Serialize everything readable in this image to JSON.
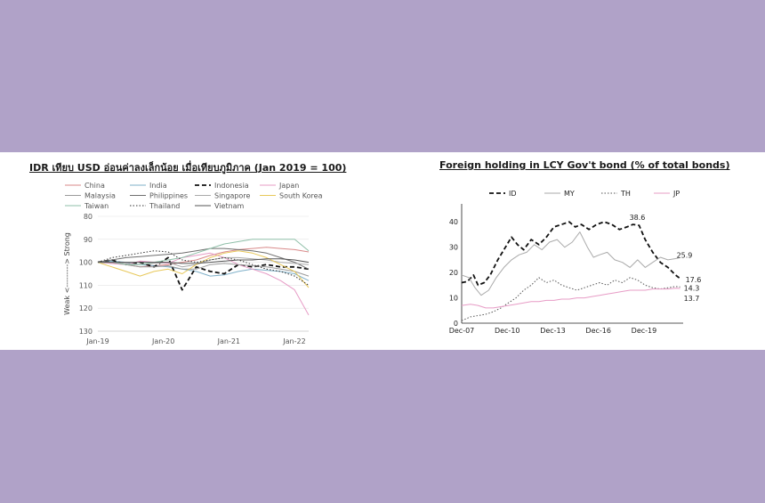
{
  "chart_data": [
    {
      "type": "line",
      "title": "IDR เทียบ USD อ่อนค่าลงเล็กน้อย เมื่อเทียบภูมิภาค (Jan 2019 = 100)",
      "ylabel": "Weak <---------> Strong",
      "xlabel": "",
      "y_inverted": true,
      "ylim": [
        80,
        130
      ],
      "yticks": [
        "80",
        "90",
        "100",
        "110",
        "120",
        "130"
      ],
      "xticks": [
        "Jan-19",
        "Jan-20",
        "Jan-21",
        "Jan-22"
      ],
      "legend_position": "top",
      "series": [
        {
          "name": "China",
          "color": "#d98a8a",
          "dash": "solid",
          "values": [
            100,
            100.5,
            101,
            102,
            101.5,
            101,
            100,
            99,
            97,
            95.5,
            94.5,
            94,
            93.5,
            94,
            94.5,
            95.5
          ]
        },
        {
          "name": "India",
          "color": "#7fb0c9",
          "dash": "solid",
          "values": [
            100,
            99.5,
            100,
            101,
            101.5,
            102,
            103,
            104,
            106,
            105.5,
            104,
            103,
            103.5,
            104,
            105,
            108
          ]
        },
        {
          "name": "Indonesia",
          "color": "#111111",
          "dash": "dash",
          "values": [
            100,
            99,
            101,
            100,
            102,
            98,
            112,
            102,
            104,
            105,
            101,
            102,
            101,
            102,
            102,
            103
          ]
        },
        {
          "name": "Japan",
          "color": "#e79cc6",
          "dash": "solid",
          "values": [
            100,
            100.5,
            101,
            99.5,
            100,
            100.5,
            98,
            97,
            96,
            98,
            101,
            103,
            105,
            108,
            112,
            123
          ]
        },
        {
          "name": "Malaysia",
          "color": "#9a9a9a",
          "dash": "solid",
          "values": [
            100,
            100,
            101,
            102,
            102,
            101.5,
            103,
            103,
            101,
            100.5,
            101,
            101.5,
            102,
            103,
            104,
            106
          ]
        },
        {
          "name": "Philippines",
          "color": "#6f6f6f",
          "dash": "solid",
          "values": [
            100,
            99,
            98,
            97.5,
            97,
            96.5,
            96,
            95,
            94,
            94,
            94.5,
            95,
            96,
            98,
            100,
            103
          ]
        },
        {
          "name": "Singapore",
          "color": "#aaaaaa",
          "dash": "solid",
          "values": [
            100,
            100,
            100.5,
            101,
            100.5,
            100,
            102,
            101,
            99,
            98,
            98,
            98.5,
            99,
            100,
            100.5,
            101
          ]
        },
        {
          "name": "South Korea",
          "color": "#e8c85a",
          "dash": "solid",
          "values": [
            100,
            102,
            104,
            106,
            104,
            103,
            105,
            101,
            98,
            96,
            95,
            96,
            98,
            101,
            104,
            111
          ]
        },
        {
          "name": "Taiwan",
          "color": "#8fbfa8",
          "dash": "solid",
          "values": [
            100,
            100,
            101,
            101,
            100,
            99,
            98,
            96,
            94,
            92,
            91,
            90,
            90,
            90,
            90,
            95
          ]
        },
        {
          "name": "Thailand",
          "color": "#333333",
          "dash": "dot",
          "values": [
            100,
            98,
            97,
            96,
            95,
            95.5,
            99,
            100,
            99,
            98,
            99,
            101,
            103,
            104,
            106,
            110
          ]
        },
        {
          "name": "Vietnam",
          "color": "#555555",
          "dash": "solid",
          "values": [
            100,
            100,
            100,
            100,
            100,
            100,
            100.5,
            100.5,
            100,
            99.5,
            99,
            99,
            98.5,
            98.5,
            99,
            100
          ]
        }
      ]
    },
    {
      "type": "line",
      "title": "Foreign holding in LCY Gov't bond (% of total bonds)",
      "ylim": [
        0,
        45
      ],
      "yticks": [
        "0",
        "10",
        "20",
        "30",
        "40"
      ],
      "xticks": [
        "Dec-07",
        "Dec-10",
        "Dec-13",
        "Dec-16",
        "Dec-19"
      ],
      "x_range": [
        2007.92,
        2022.5
      ],
      "legend_position": "top",
      "series": [
        {
          "name": "ID",
          "color": "#111111",
          "dash": "dash",
          "end_label": "17.6",
          "x": [
            2007.92,
            2008.3,
            2008.7,
            2009.0,
            2009.4,
            2009.8,
            2010.3,
            2010.8,
            2011.2,
            2011.6,
            2012.0,
            2012.5,
            2013.0,
            2013.5,
            2014.0,
            2014.5,
            2015.0,
            2015.4,
            2015.8,
            2016.3,
            2016.8,
            2017.3,
            2017.8,
            2018.3,
            2018.8,
            2019.2,
            2019.6,
            2020.0,
            2020.5,
            2021.0,
            2021.5,
            2022.0,
            2022.3
          ],
          "values": [
            16,
            16.5,
            19,
            15,
            16,
            19,
            25,
            30,
            34,
            31,
            29,
            33,
            31,
            34,
            38,
            39,
            40,
            38,
            39,
            37,
            39,
            40,
            39,
            37,
            38,
            39,
            38.6,
            33,
            28,
            24,
            22,
            19,
            17.6
          ]
        },
        {
          "name": "MY",
          "color": "#aaaaaa",
          "dash": "solid",
          "end_label": "25.9",
          "x": [
            2007.92,
            2008.4,
            2008.8,
            2009.2,
            2009.7,
            2010.2,
            2010.7,
            2011.2,
            2011.7,
            2012.2,
            2012.7,
            2013.2,
            2013.7,
            2014.2,
            2014.7,
            2015.2,
            2015.7,
            2016.2,
            2016.6,
            2017.0,
            2017.5,
            2018.0,
            2018.5,
            2019.0,
            2019.5,
            2020.0,
            2020.5,
            2021.0,
            2021.5,
            2022.0,
            2022.3
          ],
          "values": [
            19,
            18,
            14,
            11,
            13,
            18,
            22,
            25,
            27,
            28,
            31,
            29,
            32,
            33,
            30,
            32,
            36,
            30,
            26,
            27,
            28,
            25,
            24,
            22,
            25,
            22,
            24,
            26,
            25,
            25.5,
            25.9
          ]
        },
        {
          "name": "TH",
          "color": "#555555",
          "dash": "dot",
          "end_label": "14.3",
          "x": [
            2007.92,
            2008.5,
            2009.0,
            2009.5,
            2010.0,
            2010.5,
            2011.0,
            2011.5,
            2012.0,
            2012.5,
            2013.0,
            2013.5,
            2014.0,
            2014.5,
            2015.0,
            2015.5,
            2016.0,
            2016.5,
            2017.0,
            2017.5,
            2018.0,
            2018.5,
            2019.0,
            2019.5,
            2020.0,
            2020.5,
            2021.0,
            2021.5,
            2022.0,
            2022.3
          ],
          "values": [
            1,
            2.5,
            3,
            3.5,
            4.5,
            6,
            8,
            10,
            13,
            15,
            18,
            16,
            17,
            15,
            14,
            13,
            14,
            15,
            16,
            15,
            17,
            16,
            18,
            17,
            15,
            14,
            13.5,
            14,
            14.5,
            14.3
          ]
        },
        {
          "name": "JP",
          "color": "#e79cc6",
          "dash": "solid",
          "end_label": "13.7",
          "x": [
            2007.92,
            2008.5,
            2009.0,
            2009.5,
            2010.0,
            2010.5,
            2011.0,
            2011.5,
            2012.0,
            2012.5,
            2013.0,
            2013.5,
            2014.0,
            2014.5,
            2015.0,
            2015.5,
            2016.0,
            2016.5,
            2017.0,
            2017.5,
            2018.0,
            2018.5,
            2019.0,
            2019.5,
            2020.0,
            2020.5,
            2021.0,
            2021.5,
            2022.0,
            2022.3
          ],
          "values": [
            7,
            7.5,
            7,
            6,
            6,
            6.5,
            7,
            7.5,
            8,
            8.5,
            8.5,
            9,
            9,
            9.5,
            9.5,
            10,
            10,
            10.5,
            11,
            11.5,
            12,
            12.5,
            13,
            13,
            13,
            13.5,
            13.5,
            13.5,
            13.8,
            13.7
          ]
        }
      ],
      "labels": [
        {
          "text": "38.6",
          "x": 2019.6,
          "y": 38.6
        }
      ]
    }
  ]
}
